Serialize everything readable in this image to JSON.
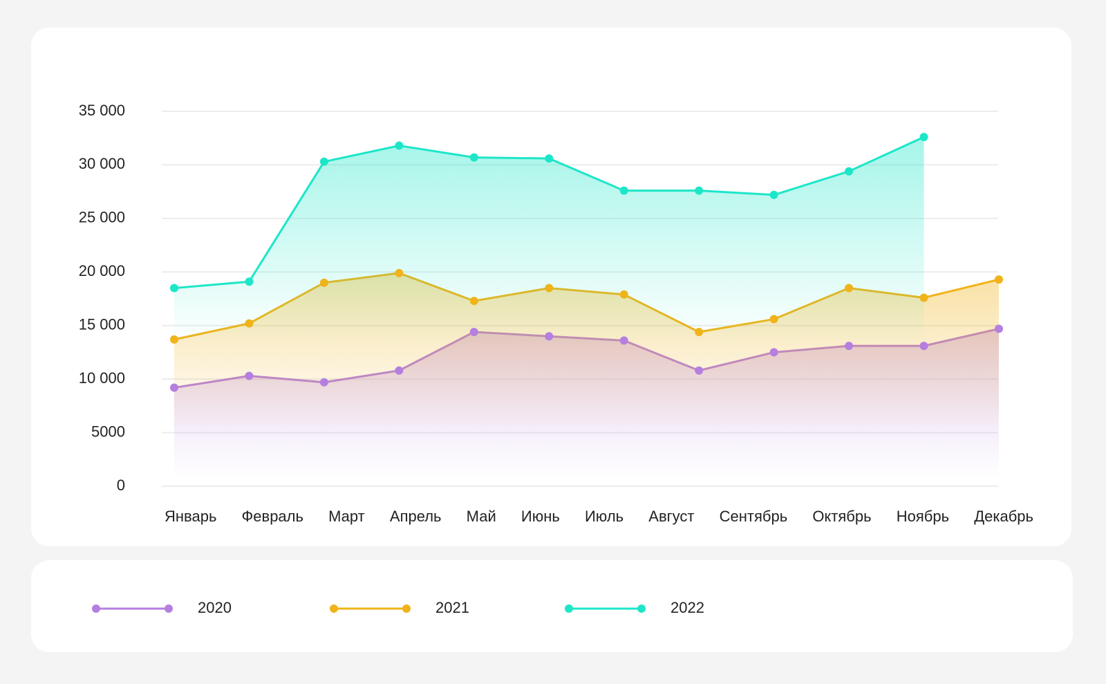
{
  "chart_data": {
    "type": "line",
    "categories": [
      "Январь",
      "Февраль",
      "Март",
      "Апрель",
      "Май",
      "Июнь",
      "Июль",
      "Август",
      "Сентябрь",
      "Октябрь",
      "Ноябрь",
      "Декабрь"
    ],
    "series": [
      {
        "name": "2020",
        "color": "#b57fe0",
        "values": [
          9200,
          10300,
          9700,
          10800,
          14400,
          14000,
          13600,
          10800,
          12500,
          13100,
          13100,
          14700
        ]
      },
      {
        "name": "2021",
        "color": "#f0b31a",
        "values": [
          13700,
          15200,
          19000,
          19900,
          17300,
          18500,
          17900,
          14400,
          15600,
          18500,
          17600,
          19300
        ]
      },
      {
        "name": "2022",
        "color": "#1de6c8",
        "values": [
          18500,
          19100,
          30300,
          31800,
          30700,
          30600,
          27600,
          27600,
          27200,
          29400,
          32600,
          null
        ]
      }
    ],
    "ylim": [
      0,
      35000
    ],
    "yticks": [
      0,
      5000,
      {
        "value": 10000,
        "label": "10 000"
      },
      {
        "value": 15000,
        "label": "15 000"
      },
      {
        "value": 20000,
        "label": "20 000"
      },
      {
        "value": 25000,
        "label": "25 000"
      },
      {
        "value": 30000,
        "label": "30 000"
      },
      {
        "value": 35000,
        "label": "35 000"
      }
    ],
    "grid": true,
    "legend": "bottom",
    "area": true
  }
}
